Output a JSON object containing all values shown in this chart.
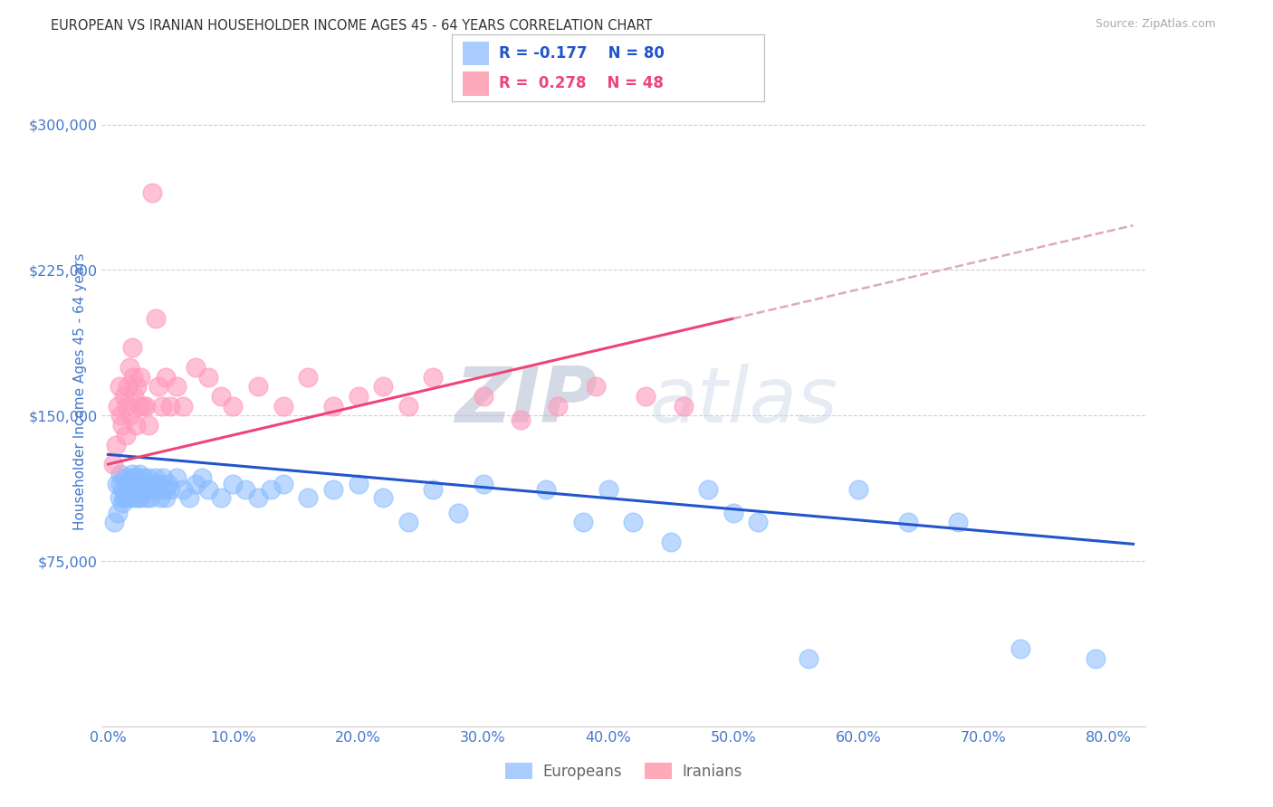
{
  "title": "EUROPEAN VS IRANIAN HOUSEHOLDER INCOME AGES 45 - 64 YEARS CORRELATION CHART",
  "source": "Source: ZipAtlas.com",
  "ylabel": "Householder Income Ages 45 - 64 years",
  "xtick_labels": [
    "0.0%",
    "10.0%",
    "20.0%",
    "30.0%",
    "40.0%",
    "50.0%",
    "60.0%",
    "70.0%",
    "80.0%"
  ],
  "xtick_values": [
    0.0,
    0.1,
    0.2,
    0.3,
    0.4,
    0.5,
    0.6,
    0.7,
    0.8
  ],
  "ytick_labels": [
    "$75,000",
    "$150,000",
    "$225,000",
    "$300,000"
  ],
  "ytick_values": [
    75000,
    150000,
    225000,
    300000
  ],
  "xlim": [
    -0.005,
    0.83
  ],
  "ylim": [
    -10000,
    335000
  ],
  "european_R": -0.177,
  "european_N": 80,
  "iranian_R": 0.278,
  "iranian_N": 48,
  "european_color": "#88bbff",
  "iranian_color": "#ff99bb",
  "trend_euro_color": "#2255cc",
  "trend_iran_solid_color": "#ee4477",
  "trend_iran_dash_color": "#ddaabb",
  "background_color": "#ffffff",
  "title_color": "#333333",
  "axis_color": "#4477cc",
  "grid_color": "#cccccc",
  "legend_fill_euro": "#aaccff",
  "legend_fill_iran": "#ffaabb",
  "legend_border": "#bbbbbb",
  "watermark_color": "#c8d4e8",
  "euro_x": [
    0.005,
    0.007,
    0.008,
    0.009,
    0.01,
    0.01,
    0.011,
    0.012,
    0.013,
    0.013,
    0.014,
    0.015,
    0.015,
    0.016,
    0.017,
    0.018,
    0.019,
    0.019,
    0.02,
    0.02,
    0.021,
    0.022,
    0.022,
    0.023,
    0.024,
    0.025,
    0.025,
    0.026,
    0.027,
    0.028,
    0.029,
    0.03,
    0.031,
    0.032,
    0.033,
    0.034,
    0.035,
    0.036,
    0.038,
    0.04,
    0.042,
    0.044,
    0.045,
    0.046,
    0.048,
    0.05,
    0.055,
    0.06,
    0.065,
    0.07,
    0.075,
    0.08,
    0.09,
    0.1,
    0.11,
    0.12,
    0.13,
    0.14,
    0.16,
    0.18,
    0.2,
    0.22,
    0.24,
    0.26,
    0.28,
    0.3,
    0.35,
    0.38,
    0.4,
    0.42,
    0.45,
    0.48,
    0.5,
    0.52,
    0.56,
    0.6,
    0.64,
    0.68,
    0.73,
    0.79
  ],
  "euro_y": [
    95000,
    115000,
    100000,
    108000,
    115000,
    120000,
    105000,
    112000,
    118000,
    108000,
    115000,
    118000,
    108000,
    112000,
    115000,
    108000,
    120000,
    112000,
    115000,
    118000,
    108000,
    112000,
    115000,
    118000,
    108000,
    115000,
    120000,
    108000,
    112000,
    118000,
    112000,
    115000,
    108000,
    118000,
    112000,
    108000,
    115000,
    112000,
    118000,
    115000,
    108000,
    118000,
    112000,
    108000,
    115000,
    112000,
    118000,
    112000,
    108000,
    115000,
    118000,
    112000,
    108000,
    115000,
    112000,
    108000,
    112000,
    115000,
    108000,
    112000,
    115000,
    108000,
    95000,
    112000,
    100000,
    115000,
    112000,
    95000,
    112000,
    95000,
    85000,
    112000,
    100000,
    95000,
    25000,
    112000,
    95000,
    95000,
    30000,
    25000
  ],
  "iran_x": [
    0.004,
    0.006,
    0.008,
    0.009,
    0.01,
    0.011,
    0.013,
    0.014,
    0.015,
    0.016,
    0.017,
    0.018,
    0.019,
    0.02,
    0.021,
    0.022,
    0.023,
    0.025,
    0.026,
    0.028,
    0.03,
    0.032,
    0.035,
    0.038,
    0.04,
    0.043,
    0.046,
    0.05,
    0.055,
    0.06,
    0.07,
    0.08,
    0.09,
    0.1,
    0.12,
    0.14,
    0.16,
    0.18,
    0.2,
    0.22,
    0.24,
    0.26,
    0.3,
    0.33,
    0.36,
    0.39,
    0.43,
    0.46
  ],
  "iran_y": [
    125000,
    135000,
    155000,
    165000,
    150000,
    145000,
    160000,
    140000,
    155000,
    165000,
    175000,
    150000,
    185000,
    170000,
    160000,
    145000,
    165000,
    155000,
    170000,
    155000,
    155000,
    145000,
    265000,
    200000,
    165000,
    155000,
    170000,
    155000,
    165000,
    155000,
    175000,
    170000,
    160000,
    155000,
    165000,
    155000,
    170000,
    155000,
    160000,
    165000,
    155000,
    170000,
    160000,
    148000,
    155000,
    165000,
    160000,
    155000
  ]
}
